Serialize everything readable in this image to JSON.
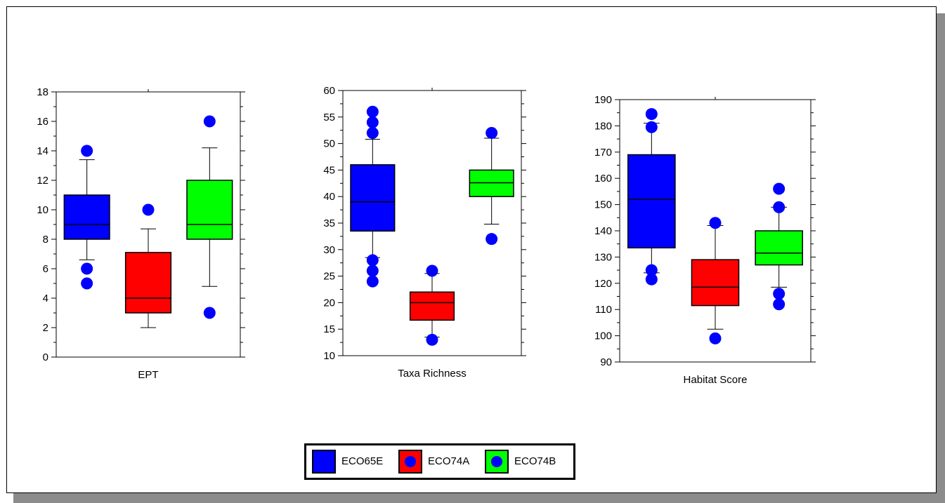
{
  "colors": {
    "ECO65E": "#0000ff",
    "ECO74A": "#ff0000",
    "ECO74B": "#00ff00",
    "outlier": "#0000ff"
  },
  "legend": {
    "items": [
      {
        "label": "ECO65E",
        "fill": "#0000ff",
        "marker": "none"
      },
      {
        "label": "ECO74A",
        "fill": "#ff0000",
        "marker": "#0000ff"
      },
      {
        "label": "ECO74B",
        "fill": "#00ff00",
        "marker": "#0000ff"
      }
    ]
  },
  "chart_data": [
    {
      "type": "boxplot",
      "xlabel": "EPT",
      "ylim": [
        0,
        18
      ],
      "yticks": [
        0,
        2,
        4,
        6,
        8,
        10,
        12,
        14,
        16,
        18
      ],
      "groups": [
        {
          "name": "ECO65E",
          "whisker_low": 6.6,
          "q1": 8,
          "median": 9,
          "q3": 11,
          "whisker_high": 13.4,
          "outliers": [
            5,
            6,
            14
          ]
        },
        {
          "name": "ECO74A",
          "whisker_low": 2,
          "q1": 3,
          "median": 4,
          "q3": 7.1,
          "whisker_high": 8.7,
          "outliers": [
            10
          ]
        },
        {
          "name": "ECO74B",
          "whisker_low": 4.8,
          "q1": 8,
          "median": 9,
          "q3": 12,
          "whisker_high": 14.2,
          "outliers": [
            3,
            16
          ]
        }
      ]
    },
    {
      "type": "boxplot",
      "xlabel": "Taxa Richness",
      "ylim": [
        10,
        60
      ],
      "yticks": [
        10,
        15,
        20,
        25,
        30,
        35,
        40,
        45,
        50,
        55,
        60
      ],
      "groups": [
        {
          "name": "ECO65E",
          "whisker_low": 28.5,
          "q1": 33.5,
          "median": 39,
          "q3": 46,
          "whisker_high": 50.8,
          "outliers": [
            24,
            26,
            28,
            52,
            54,
            56
          ]
        },
        {
          "name": "ECO74A",
          "whisker_low": 13.5,
          "q1": 16.7,
          "median": 20,
          "q3": 22,
          "whisker_high": 25.5,
          "outliers": [
            13,
            26
          ]
        },
        {
          "name": "ECO74B",
          "whisker_low": 34.8,
          "q1": 40,
          "median": 42.6,
          "q3": 45,
          "whisker_high": 51,
          "outliers": [
            32,
            52
          ]
        }
      ]
    },
    {
      "type": "boxplot",
      "xlabel": "Habitat Score",
      "ylim": [
        90,
        190
      ],
      "yticks": [
        90,
        100,
        110,
        120,
        130,
        140,
        150,
        160,
        170,
        180,
        190
      ],
      "groups": [
        {
          "name": "ECO65E",
          "whisker_low": 124,
          "q1": 133.5,
          "median": 152,
          "q3": 169,
          "whisker_high": 181,
          "outliers": [
            121.5,
            125,
            179.5,
            184.5
          ]
        },
        {
          "name": "ECO74A",
          "whisker_low": 102.5,
          "q1": 111.5,
          "median": 118.5,
          "q3": 129,
          "whisker_high": 142,
          "outliers": [
            99,
            143
          ]
        },
        {
          "name": "ECO74B",
          "whisker_low": 118.5,
          "q1": 127,
          "median": 131.5,
          "q3": 140,
          "whisker_high": 149,
          "outliers": [
            112,
            116,
            149,
            156
          ]
        }
      ]
    }
  ]
}
